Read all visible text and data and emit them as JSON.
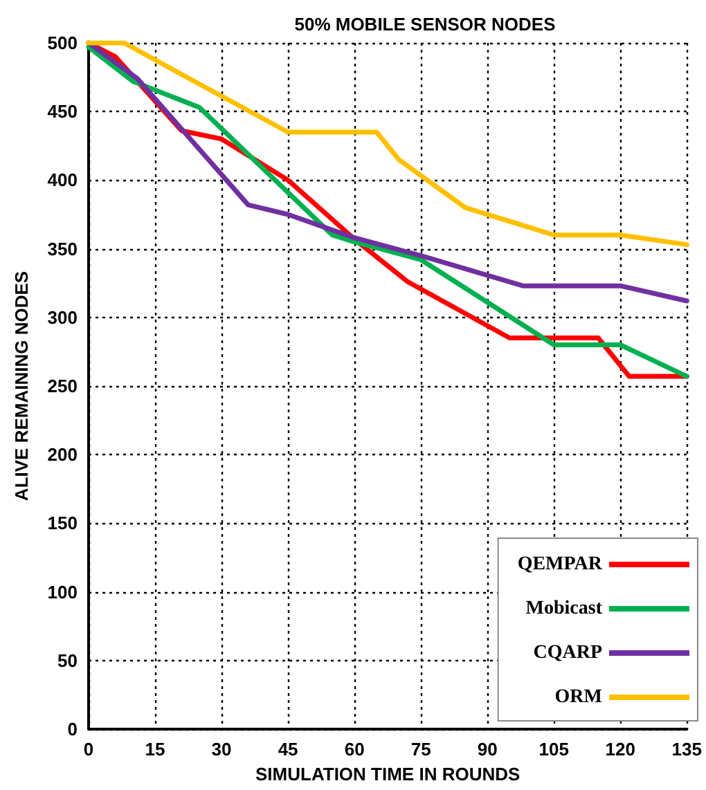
{
  "chart_data": {
    "type": "line",
    "title": "50% MOBILE SENSOR NODES",
    "xlabel": "SIMULATION TIME IN ROUNDS",
    "ylabel": "ALIVE REMAINING NODES",
    "xlim": [
      0,
      135
    ],
    "xticks": [
      0,
      15,
      30,
      45,
      60,
      75,
      90,
      105,
      120,
      135
    ],
    "ylim": [
      0,
      500
    ],
    "yticks": [
      0,
      50,
      100,
      150,
      200,
      250,
      300,
      350,
      400,
      450,
      500
    ],
    "grid": true,
    "legend": "bottom right",
    "marker": "none",
    "line_style": "solid",
    "series": [
      {
        "name": "QEMPAR",
        "color": "#ff0000",
        "x": [
          0,
          6,
          21,
          30,
          45,
          60,
          72,
          95,
          115,
          122,
          135
        ],
        "values": [
          500,
          490,
          436,
          430,
          400,
          357,
          326,
          285,
          285,
          257,
          257
        ]
      },
      {
        "name": "Mobicast",
        "color": "#00b050",
        "x": [
          0,
          10,
          25,
          55,
          60,
          75,
          105,
          120,
          135
        ],
        "values": [
          497,
          472,
          453,
          360,
          355,
          342,
          280,
          280,
          257
        ]
      },
      {
        "name": "CQARP",
        "color": "#7030a0",
        "x": [
          0,
          11,
          36,
          45,
          60,
          75,
          98,
          120,
          135
        ],
        "values": [
          500,
          474,
          382,
          375,
          358,
          345,
          323,
          323,
          312
        ]
      },
      {
        "name": "ORM",
        "color": "#ffc000",
        "x": [
          0,
          8,
          25,
          45,
          65,
          70,
          85,
          105,
          120,
          135
        ],
        "values": [
          500,
          500,
          470,
          435,
          435,
          415,
          380,
          360,
          360,
          353
        ]
      }
    ]
  }
}
